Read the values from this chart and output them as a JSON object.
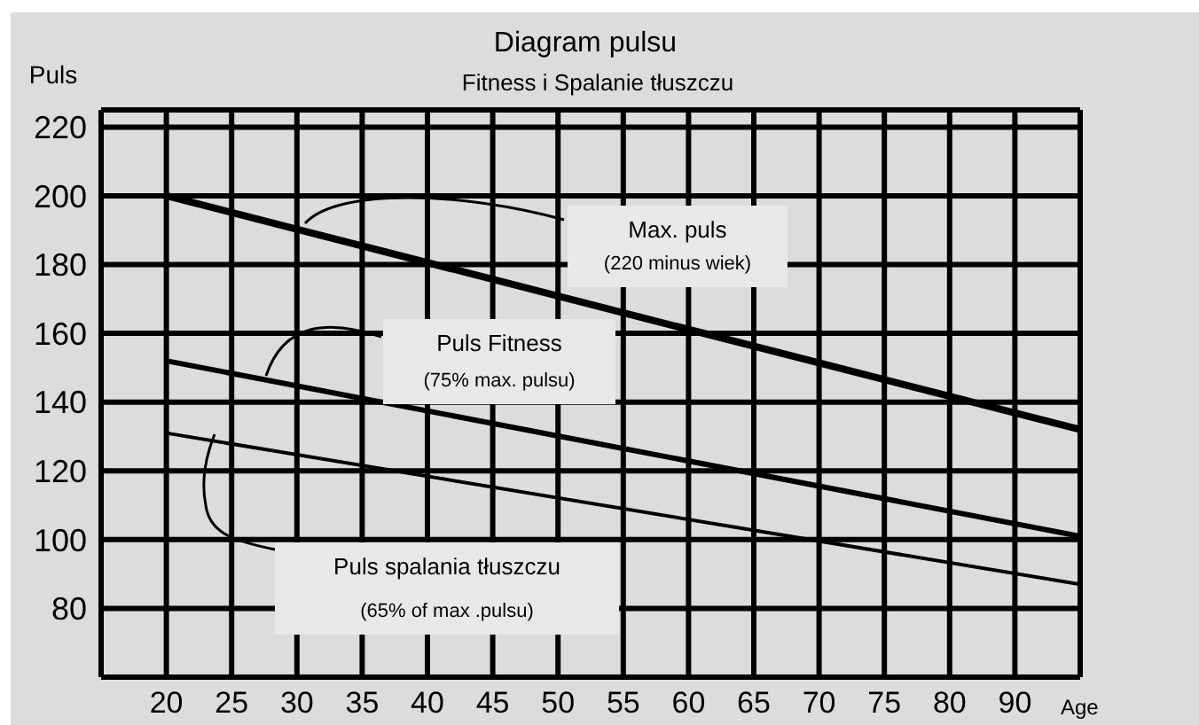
{
  "chart_data": {
    "type": "line",
    "title": "Diagram pulsu",
    "subtitle": "Fitness i Spalanie tłuszczu",
    "ylabel": "Puls",
    "xlabel": "Age",
    "categories": [
      null,
      "20",
      "25",
      "30",
      "35",
      "40",
      "45",
      "50",
      "55",
      "60",
      "65",
      "70",
      "75",
      "80",
      "90",
      null
    ],
    "series": [
      {
        "name": "Max. puls",
        "color": "#000000",
        "values": [
          null,
          200,
          null,
          null,
          null,
          null,
          null,
          null,
          null,
          null,
          null,
          null,
          null,
          null,
          null,
          132
        ]
      },
      {
        "name": "Puls Fitness",
        "color": "#000000",
        "values": [
          null,
          152,
          null,
          null,
          null,
          null,
          null,
          null,
          null,
          null,
          null,
          null,
          null,
          null,
          null,
          101
        ]
      },
      {
        "name": "Puls spalania tłuszczu",
        "color": "#000000",
        "values": [
          null,
          131,
          null,
          null,
          null,
          null,
          null,
          null,
          null,
          null,
          null,
          null,
          null,
          null,
          null,
          87
        ]
      }
    ],
    "annotations": [
      "(220 minus wiek)",
      "(75% max. pulsu)",
      "(65% of max .pulsu)"
    ],
    "ylim": [
      60,
      225
    ],
    "yticks": [
      80,
      100,
      120,
      140,
      160,
      180,
      200,
      220
    ],
    "grid": true,
    "marker": "none",
    "line_style": "solid"
  }
}
